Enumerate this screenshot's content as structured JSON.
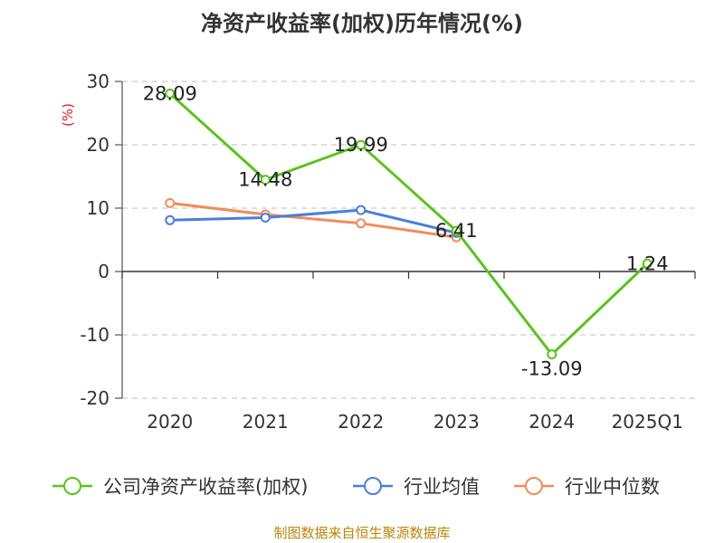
{
  "title": "净资产收益率(加权)历年情况(%)",
  "source": "制图数据来自恒生聚源数据库",
  "chart_data": {
    "type": "line",
    "title": "净资产收益率(加权)历年情况(%)",
    "ylabel": "(%)",
    "ylim": [
      -20,
      30
    ],
    "yticks": [
      30,
      20,
      10,
      0,
      -10,
      -20
    ],
    "grid": true,
    "legend_position": "bottom",
    "categories": [
      "2020",
      "2021",
      "2022",
      "2023",
      "2024",
      "2025Q1"
    ],
    "series": [
      {
        "name": "公司净资产收益率(加权)",
        "color": "#5bc21e",
        "values": [
          28.09,
          14.48,
          19.99,
          6.41,
          -13.09,
          1.24
        ],
        "labels": true
      },
      {
        "name": "行业均值",
        "color": "#4a7fd9",
        "values": [
          8.1,
          8.5,
          9.7,
          6.1,
          null,
          null
        ],
        "labels": false
      },
      {
        "name": "行业中位数",
        "color": "#f28c5a",
        "values": [
          10.8,
          9.0,
          7.6,
          5.4,
          null,
          null
        ],
        "labels": false
      }
    ]
  }
}
